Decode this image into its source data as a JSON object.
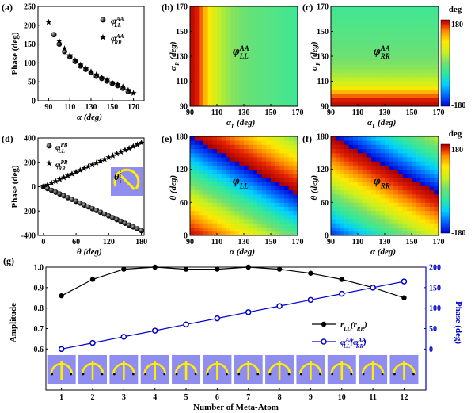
{
  "figure": {
    "deg_label": "deg",
    "colorbar_max": "180",
    "colorbar_min": "-180",
    "colormap": [
      "#0000d0",
      "#0060ff",
      "#00d0ff",
      "#30e8a0",
      "#70e070",
      "#c8f020",
      "#ffe800",
      "#ff8c00",
      "#e02000",
      "#a80000"
    ]
  },
  "chart_data": [
    {
      "id": "a",
      "panel_label": "(a)",
      "type": "scatter",
      "xlabel": "α (deg)",
      "ylabel": "Phase (deg)",
      "xlim": [
        80,
        180
      ],
      "ylim": [
        0,
        250
      ],
      "xticks": [
        90,
        110,
        130,
        150,
        170
      ],
      "yticks": [
        0,
        50,
        100,
        150,
        200,
        250
      ],
      "legend": {
        "position": "top-right",
        "entries": [
          {
            "marker": "sphere",
            "text": "φ",
            "sub": "LL",
            "sup": "AA"
          },
          {
            "marker": "star",
            "text": "φ",
            "sub": "RR",
            "sup": "AA"
          }
        ]
      },
      "series": [
        {
          "name": "φLL AA",
          "marker": "sphere",
          "x": [
            95,
            100,
            105,
            110,
            115,
            120,
            125,
            130,
            135,
            140,
            145,
            150,
            155,
            160,
            165
          ],
          "y": [
            175,
            150,
            130,
            116,
            104,
            92,
            83,
            74,
            65,
            59,
            52,
            46,
            40,
            33,
            24
          ]
        },
        {
          "name": "φRR AA",
          "marker": "star",
          "x": [
            90,
            100,
            105,
            110,
            115,
            120,
            125,
            130,
            135,
            140,
            145,
            150,
            155,
            160,
            165,
            170
          ],
          "y": [
            208,
            158,
            138,
            120,
            107,
            95,
            85,
            77,
            69,
            61,
            55,
            48,
            43,
            37,
            28,
            20
          ]
        }
      ]
    },
    {
      "id": "b",
      "panel_label": "(b)",
      "type": "heatmap",
      "xlabel": "α",
      "xlabel_sub": "L",
      "xlabel_unit": "(deg)",
      "ylabel": "α",
      "ylabel_sub": "R",
      "ylabel_unit": "(deg)",
      "xlim": [
        90,
        170
      ],
      "ylim": [
        90,
        170
      ],
      "xticks": [
        90,
        110,
        130,
        150,
        170
      ],
      "yticks": [
        90,
        110,
        130,
        150,
        170
      ],
      "annotation": {
        "text": "φ",
        "sub": "LL",
        "sup": "AA"
      },
      "field": "vary_x",
      "profile": [
        0.98,
        0.9,
        0.75,
        0.62,
        0.55,
        0.5,
        0.47,
        0.45,
        0.43,
        0.42,
        0.41,
        0.4,
        0.39,
        0.38,
        0.37,
        0.36
      ]
    },
    {
      "id": "c",
      "panel_label": "(c)",
      "type": "heatmap",
      "xlabel": "α",
      "xlabel_sub": "L",
      "xlabel_unit": "(deg)",
      "ylabel": "α",
      "ylabel_sub": "R",
      "ylabel_unit": "(deg)",
      "xlim": [
        90,
        170
      ],
      "ylim": [
        90,
        170
      ],
      "xticks": [
        90,
        110,
        130,
        150,
        170
      ],
      "yticks": [
        90,
        110,
        130,
        150,
        170
      ],
      "annotation": {
        "text": "φ",
        "sub": "RR",
        "sup": "AA"
      },
      "field": "vary_y",
      "profile": [
        0.98,
        0.9,
        0.75,
        0.62,
        0.55,
        0.5,
        0.47,
        0.45,
        0.43,
        0.42,
        0.41,
        0.4,
        0.39,
        0.38,
        0.37,
        0.36
      ]
    },
    {
      "id": "d",
      "panel_label": "(d)",
      "type": "scatter",
      "xlabel": "θ (deg)",
      "ylabel": "Phase (deg)",
      "xlim": [
        -10,
        185
      ],
      "ylim": [
        -400,
        400
      ],
      "xticks": [
        0,
        60,
        120,
        180
      ],
      "yticks": [
        -400,
        -200,
        0,
        200,
        400
      ],
      "legend": {
        "position": "top-left",
        "entries": [
          {
            "marker": "sphere",
            "text": "φ",
            "sub": "LL",
            "sup": "PB"
          },
          {
            "marker": "star",
            "text": "φ",
            "sub": "RR",
            "sup": "PB"
          }
        ]
      },
      "inset_label": "θ",
      "series": [
        {
          "name": "φLL PB",
          "marker": "sphere",
          "x_start": 0,
          "x_step": 7.5,
          "count": 25,
          "slope": -2
        },
        {
          "name": "φRR PB",
          "marker": "star",
          "x_start": 0,
          "x_step": 7.5,
          "count": 25,
          "slope": 2
        }
      ]
    },
    {
      "id": "e",
      "panel_label": "(e)",
      "type": "heatmap",
      "xlabel": "α (deg)",
      "ylabel": "θ (deg)",
      "xlim": [
        90,
        170
      ],
      "ylim": [
        0,
        180
      ],
      "xticks": [
        90,
        110,
        130,
        150,
        170
      ],
      "yticks": [
        0,
        60,
        120,
        180
      ],
      "annotation": {
        "text": "φ",
        "sub": "LL",
        "sup": ""
      },
      "field": "pb_ll"
    },
    {
      "id": "f",
      "panel_label": "(f)",
      "type": "heatmap",
      "xlabel": "α (deg)",
      "ylabel": "θ (deg)",
      "xlim": [
        90,
        170
      ],
      "ylim": [
        0,
        180
      ],
      "xticks": [
        90,
        110,
        130,
        150,
        170
      ],
      "yticks": [
        0,
        60,
        120,
        180
      ],
      "annotation": {
        "text": "φ",
        "sub": "RR",
        "sup": ""
      },
      "field": "pb_rr"
    },
    {
      "id": "g",
      "panel_label": "(g)",
      "type": "line",
      "xlabel": "Number of Meta-Atom",
      "ylabel_left": "Amplitude",
      "ylabel_right": "Phase (deg)",
      "x": [
        1,
        2,
        3,
        4,
        5,
        6,
        7,
        8,
        9,
        10,
        11,
        12
      ],
      "ylim_left": [
        0.4,
        1.0
      ],
      "yticks_left": [
        0.6,
        0.7,
        0.8,
        0.9,
        1.0
      ],
      "ylim_right": [
        -100,
        200
      ],
      "yticks_right": [
        0,
        50,
        100,
        150,
        200
      ],
      "right_axis_color": "#0000cc",
      "series": [
        {
          "name": "rLL(rRR)",
          "axis": "left",
          "color": "#000000",
          "values": [
            0.86,
            0.94,
            0.99,
            1.0,
            0.99,
            0.99,
            1.0,
            0.99,
            0.97,
            0.94,
            0.9,
            0.85
          ]
        },
        {
          "name": "φLL AA(φRR AA)",
          "axis": "right",
          "color": "#0000cc",
          "values": [
            0,
            15,
            30,
            45,
            60,
            75,
            90,
            105,
            120,
            135,
            150,
            165
          ]
        }
      ],
      "legend": {
        "position": "right",
        "entries": [
          {
            "text": "r",
            "sub": "LL",
            "mid": "(r",
            "sub2": "RR",
            "end": ")"
          },
          {
            "text": "φ",
            "sub": "LL",
            "sup": "AA",
            "mid": "(φ",
            "sub2": "RR",
            "sup2": "AA",
            "end": ")"
          }
        ]
      },
      "meta_atom_count": 12,
      "meta_atom_angles": [
        175,
        160,
        145,
        130,
        115,
        100,
        90,
        80,
        70,
        60,
        50,
        40
      ]
    }
  ]
}
